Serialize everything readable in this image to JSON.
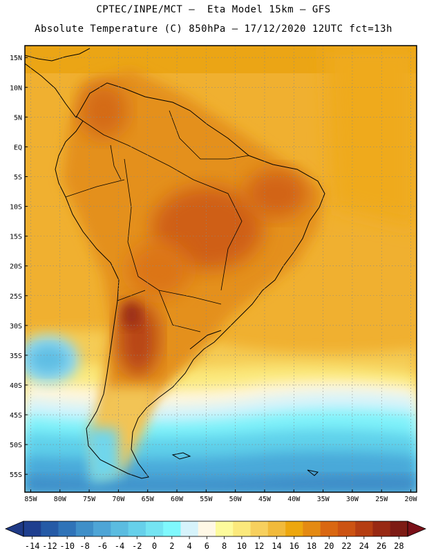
{
  "header": {
    "line1": "CPTEC/INPE/MCT —  Eta Model 15km — GFS",
    "line2": "Absolute Temperature (C) 850hPa — 17/12/2020 12UTC fct=13h"
  },
  "map": {
    "region": "South America",
    "lon_range": [
      -86,
      -19
    ],
    "lat_range": [
      -58,
      17
    ],
    "lat_ticks": [
      "15N",
      "10N",
      "5N",
      "EQ",
      "5S",
      "10S",
      "15S",
      "20S",
      "25S",
      "30S",
      "35S",
      "40S",
      "45S",
      "50S",
      "55S"
    ],
    "lat_values": [
      15,
      10,
      5,
      0,
      -5,
      -10,
      -15,
      -20,
      -25,
      -30,
      -35,
      -40,
      -45,
      -50,
      -55
    ],
    "lon_ticks": [
      "85W",
      "80W",
      "75W",
      "70W",
      "65W",
      "60W",
      "55W",
      "50W",
      "45W",
      "40W",
      "35W",
      "30W",
      "25W",
      "20W"
    ],
    "lon_values": [
      -85,
      -80,
      -75,
      -70,
      -65,
      -60,
      -55,
      -50,
      -45,
      -40,
      -35,
      -30,
      -25,
      -20
    ],
    "gridlines": true
  },
  "colorbar": {
    "labels": [
      "-14",
      "-12",
      "-10",
      "-8",
      "-6",
      "-4",
      "-2",
      "0",
      "2",
      "4",
      "6",
      "8",
      "10",
      "12",
      "14",
      "16",
      "18",
      "20",
      "22",
      "24",
      "26",
      "28"
    ],
    "colors": [
      "#1f3f8f",
      "#255aa6",
      "#2f73b8",
      "#3f8fc8",
      "#4ea5d6",
      "#5bbce0",
      "#66d0ea",
      "#74e4f2",
      "#7ff8fd",
      "#d6f3fb",
      "#fff8e6",
      "#fdfb9c",
      "#fbe97c",
      "#f7d05e",
      "#f1ba3b",
      "#eda70e",
      "#e48a12",
      "#d96711",
      "#cc5312",
      "#b53e12",
      "#982913",
      "#7d1b14"
    ],
    "under_color": "#1f3a86",
    "over_color": "#7a1018"
  }
}
